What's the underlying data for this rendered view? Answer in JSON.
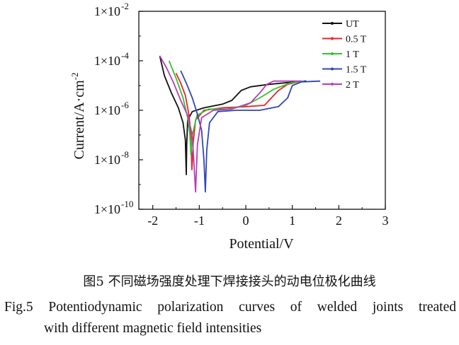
{
  "chart_data": {
    "type": "line",
    "title": "",
    "xlabel": "Potential/V",
    "ylabel": "Current/A·cm",
    "ylabel_sup": "-2",
    "xlim": [
      -2.3,
      3.0
    ],
    "ylim_log10": [
      -10,
      -2
    ],
    "log_y": true,
    "x_ticks": [
      "-2",
      "-1",
      "0",
      "1",
      "2",
      "3"
    ],
    "x_tick_values": [
      -2,
      -1,
      0,
      1,
      2,
      3
    ],
    "y_ticks": [
      {
        "base": "1×10",
        "exp": "-10",
        "value": -10
      },
      {
        "base": "1×10",
        "exp": "-8",
        "value": -8
      },
      {
        "base": "1×10",
        "exp": "-6",
        "value": -6
      },
      {
        "base": "1×10",
        "exp": "-4",
        "value": -4
      },
      {
        "base": "1×10",
        "exp": "-2",
        "value": -2
      }
    ],
    "legend_position": "top-right",
    "grid": false,
    "series": [
      {
        "name": "UT",
        "color": "#111111",
        "points": [
          [
            -1.85,
            -3.8
          ],
          [
            -1.75,
            -4.6
          ],
          [
            -1.6,
            -5.3
          ],
          [
            -1.45,
            -5.9
          ],
          [
            -1.35,
            -6.5
          ],
          [
            -1.3,
            -7.2
          ],
          [
            -1.28,
            -8.6
          ],
          [
            -1.27,
            -7.4
          ],
          [
            -1.25,
            -6.4
          ],
          [
            -1.15,
            -6.05
          ],
          [
            -0.9,
            -5.9
          ],
          [
            -0.5,
            -5.75
          ],
          [
            -0.3,
            -5.6
          ],
          [
            -0.1,
            -5.2
          ],
          [
            0.1,
            -5.05
          ],
          [
            0.5,
            -4.95
          ],
          [
            0.9,
            -4.88
          ],
          [
            1.3,
            -4.82
          ]
        ]
      },
      {
        "name": "0.5 T",
        "color": "#e8242a",
        "points": [
          [
            -1.5,
            -4.5
          ],
          [
            -1.4,
            -4.9
          ],
          [
            -1.3,
            -5.4
          ],
          [
            -1.22,
            -6.2
          ],
          [
            -1.18,
            -7.0
          ],
          [
            -1.16,
            -8.4
          ],
          [
            -1.13,
            -7.3
          ],
          [
            -1.08,
            -6.4
          ],
          [
            -0.9,
            -6.0
          ],
          [
            -0.5,
            -5.9
          ],
          [
            0.0,
            -5.85
          ],
          [
            0.4,
            -5.8
          ],
          [
            0.7,
            -5.2
          ],
          [
            0.9,
            -4.95
          ],
          [
            1.2,
            -4.82
          ]
        ]
      },
      {
        "name": "1 T",
        "color": "#35c22e",
        "points": [
          [
            -1.65,
            -4.0
          ],
          [
            -1.5,
            -4.7
          ],
          [
            -1.35,
            -5.5
          ],
          [
            -1.25,
            -6.3
          ],
          [
            -1.2,
            -7.0
          ],
          [
            -1.18,
            -7.8
          ],
          [
            -1.15,
            -7.0
          ],
          [
            -1.05,
            -6.2
          ],
          [
            -0.8,
            -5.95
          ],
          [
            -0.4,
            -5.95
          ],
          [
            0.0,
            -5.8
          ],
          [
            0.3,
            -5.5
          ],
          [
            0.6,
            -5.15
          ],
          [
            0.95,
            -4.9
          ],
          [
            1.25,
            -4.82
          ]
        ]
      },
      {
        "name": "1.5 T",
        "color": "#3146b8",
        "points": [
          [
            -1.4,
            -4.4
          ],
          [
            -1.28,
            -4.9
          ],
          [
            -1.15,
            -5.5
          ],
          [
            -1.05,
            -6.1
          ],
          [
            -0.95,
            -6.8
          ],
          [
            -0.9,
            -8.0
          ],
          [
            -0.87,
            -9.3
          ],
          [
            -0.84,
            -7.6
          ],
          [
            -0.78,
            -6.5
          ],
          [
            -0.6,
            -6.05
          ],
          [
            -0.2,
            -6.0
          ],
          [
            0.3,
            -6.0
          ],
          [
            0.7,
            -5.85
          ],
          [
            0.9,
            -5.5
          ],
          [
            1.0,
            -5.0
          ],
          [
            1.2,
            -4.85
          ],
          [
            1.6,
            -4.82
          ]
        ]
      },
      {
        "name": "2 T",
        "color": "#b83cb8",
        "points": [
          [
            -1.85,
            -3.8
          ],
          [
            -1.7,
            -4.3
          ],
          [
            -1.55,
            -4.9
          ],
          [
            -1.4,
            -5.6
          ],
          [
            -1.25,
            -6.2
          ],
          [
            -1.15,
            -7.0
          ],
          [
            -1.08,
            -9.3
          ],
          [
            -1.04,
            -7.4
          ],
          [
            -0.95,
            -6.3
          ],
          [
            -0.7,
            -6.0
          ],
          [
            -0.3,
            -5.95
          ],
          [
            0.1,
            -5.7
          ],
          [
            0.3,
            -5.3
          ],
          [
            0.45,
            -4.95
          ],
          [
            0.6,
            -4.82
          ],
          [
            1.2,
            -4.82
          ]
        ]
      }
    ]
  },
  "caption": {
    "cn": "图5  不同磁场强度处理下焊接接头的动电位极化曲线",
    "en_line1": "Fig.5  Potentiodynamic polarization curves of welded joints treated",
    "en_line2": "with different magnetic field intensities"
  }
}
